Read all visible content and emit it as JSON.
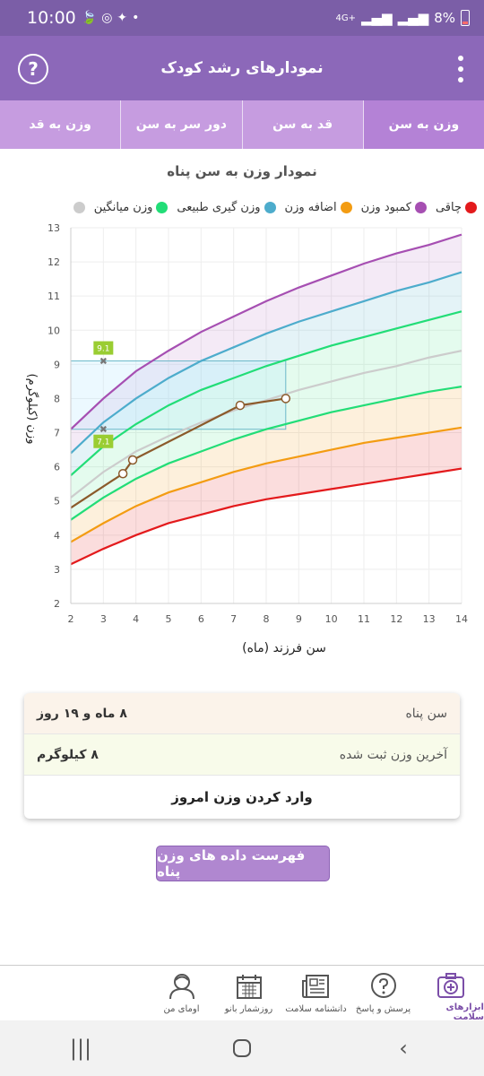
{
  "status_bar": {
    "time": "10:00",
    "battery": "8%",
    "network": "4G+"
  },
  "app_bar": {
    "title": "نمودارهای رشد کودک",
    "help_icon": "help-circle-icon",
    "menu_icon": "more-vert-icon"
  },
  "tabs": [
    {
      "label": "وزن به سن",
      "active": true
    },
    {
      "label": "قد به سن",
      "active": false
    },
    {
      "label": "دور سر به سن",
      "active": false
    },
    {
      "label": "وزن به قد",
      "active": false
    }
  ],
  "chart_title": "نمودار وزن به سن پناه",
  "legend": [
    {
      "label": "چاقی",
      "color": "#e31a1c"
    },
    {
      "label": "کمبود وزن",
      "color": "#a64fb2"
    },
    {
      "label": "اضافه وزن",
      "color": "#f39c12"
    },
    {
      "label": "وزن گیری طبیعی",
      "color": "#4daccc"
    },
    {
      "label": "وزن میانگین",
      "color": "#22dd77"
    },
    {
      "label": "",
      "color": "#cccccc"
    }
  ],
  "chart_data": {
    "type": "line",
    "xlabel": "سن فرزند (ماه)",
    "ylabel": "وزن (کیلوگرم)",
    "xlim": [
      2,
      14
    ],
    "ylim": [
      2,
      13
    ],
    "x_ticks": [
      2,
      3,
      4,
      5,
      6,
      7,
      8,
      9,
      10,
      11,
      12,
      13,
      14
    ],
    "y_ticks": [
      2,
      3,
      4,
      5,
      6,
      7,
      8,
      9,
      10,
      11,
      12,
      13
    ],
    "grid": true,
    "legend_position": "top",
    "x": [
      2,
      3,
      4,
      5,
      6,
      7,
      8,
      9,
      10,
      11,
      12,
      13,
      14
    ],
    "series": [
      {
        "name": "چاقی",
        "color": "#a64fb2",
        "values": [
          7.1,
          8.0,
          8.8,
          9.4,
          9.95,
          10.4,
          10.85,
          11.25,
          11.6,
          11.95,
          12.25,
          12.5,
          12.8
        ]
      },
      {
        "name": "اضافه وزن",
        "color": "#4daccc",
        "values": [
          6.4,
          7.3,
          8.0,
          8.6,
          9.1,
          9.5,
          9.9,
          10.25,
          10.55,
          10.85,
          11.15,
          11.4,
          11.7
        ]
      },
      {
        "name": "وزن گیری طبیعی",
        "color": "#22dd77",
        "values": [
          5.75,
          6.6,
          7.25,
          7.8,
          8.25,
          8.6,
          8.95,
          9.25,
          9.55,
          9.8,
          10.05,
          10.3,
          10.55
        ]
      },
      {
        "name": "وزن میانگین",
        "color": "#cccccc",
        "values": [
          5.1,
          5.85,
          6.45,
          6.9,
          7.3,
          7.65,
          7.95,
          8.25,
          8.5,
          8.75,
          8.95,
          9.2,
          9.4
        ]
      },
      {
        "name": "",
        "color": "#22dd77",
        "values": [
          4.45,
          5.1,
          5.65,
          6.1,
          6.45,
          6.8,
          7.1,
          7.35,
          7.6,
          7.8,
          8.0,
          8.2,
          8.35
        ]
      },
      {
        "name": "کمبود وزن",
        "color": "#f39c12",
        "values": [
          3.8,
          4.35,
          4.85,
          5.25,
          5.55,
          5.85,
          6.1,
          6.3,
          6.5,
          6.7,
          6.85,
          7.0,
          7.15
        ]
      },
      {
        "name": "",
        "color": "#e31a1c",
        "values": [
          3.15,
          3.6,
          4.0,
          4.35,
          4.6,
          4.85,
          5.05,
          5.2,
          5.35,
          5.5,
          5.65,
          5.8,
          5.95
        ]
      }
    ],
    "child_series": {
      "color": "#8b5a2b",
      "x": [
        2,
        3.6,
        3.9,
        7.2,
        8.6
      ],
      "values": [
        4.8,
        5.8,
        6.2,
        7.8,
        8.0
      ]
    },
    "markers": [
      {
        "x": 3,
        "y": 9.1,
        "label": "9.1"
      },
      {
        "x": 3,
        "y": 7.1,
        "label": "7.1"
      }
    ],
    "highlight_box": {
      "x0": 2,
      "x1": 8.6,
      "y0": 7.1,
      "y1": 9.1
    }
  },
  "info_card": {
    "age_label": "سن پناه",
    "age_value": "۸ ماه و ۱۹ روز",
    "weight_label": "آخرین وزن ثبت شده",
    "weight_value": "۸ کیلوگرم",
    "enter_label": "وارد کردن وزن امروز"
  },
  "list_button": "فهرست داده های وزن پناه",
  "bottom_nav": [
    {
      "label": "ابزارهای سلامت",
      "icon": "medical-kit-icon",
      "active": true
    },
    {
      "label": "پرسش و پاسخ",
      "icon": "question-bubble-icon",
      "active": false
    },
    {
      "label": "دانشنامه سلامت",
      "icon": "newspaper-icon",
      "active": false
    },
    {
      "label": "روزشمار بانو",
      "icon": "calendar-icon",
      "active": false
    },
    {
      "label": "اومای من",
      "icon": "user-avatar-icon",
      "active": false
    }
  ]
}
